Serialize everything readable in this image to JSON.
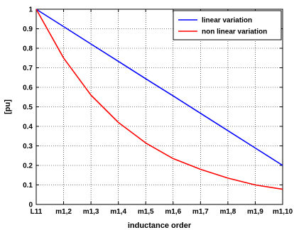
{
  "chart_data": {
    "type": "line",
    "xlabel": "inductance order",
    "ylabel": "[pu]",
    "categories": [
      "L11",
      "m1,2",
      "m1,3",
      "m1,4",
      "m1,5",
      "m1,6",
      "m1,7",
      "m1,8",
      "m1,9",
      "m1,10"
    ],
    "ylim": [
      0,
      1
    ],
    "yticks": [
      "0",
      "0.1",
      "0.2",
      "0.3",
      "0.4",
      "0.5",
      "0.6",
      "0.7",
      "0.8",
      "0.9",
      "1"
    ],
    "grid": true,
    "legend_position": "top-right",
    "series": [
      {
        "name": "linear variation",
        "color": "#0000ff",
        "values": [
          1.0,
          0.911,
          0.822,
          0.733,
          0.644,
          0.556,
          0.467,
          0.378,
          0.289,
          0.2
        ]
      },
      {
        "name": "non linear variation",
        "color": "#ff0000",
        "values": [
          1.0,
          0.75,
          0.56,
          0.42,
          0.315,
          0.235,
          0.18,
          0.135,
          0.1,
          0.078
        ]
      }
    ]
  }
}
